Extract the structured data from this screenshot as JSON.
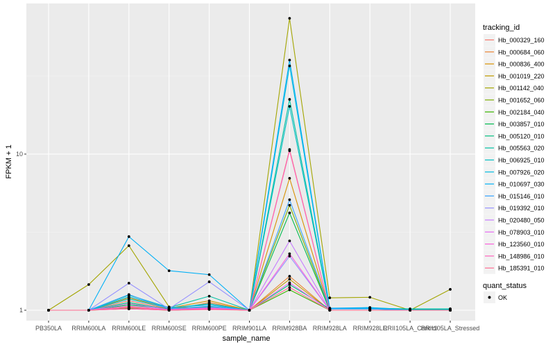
{
  "chart_data": {
    "type": "line",
    "xlabel": "sample_name",
    "ylabel": "FPKM + 1",
    "yscale": "log10",
    "ylim": [
      0.94,
      92
    ],
    "yticks": [
      1,
      10
    ],
    "ytick_labels": [
      "1",
      "10"
    ],
    "grid": true,
    "legend_position": "right",
    "categories": [
      "PB350LA",
      "RRIM600LA",
      "RRIM600LE",
      "RRIM600SE",
      "RRIM600PE",
      "RRIM901LA",
      "RRIM928BA",
      "RRIM928LA",
      "RRIM928LE",
      "RRII105LA_Control",
      "RRII105LA_Stressed"
    ],
    "legend_title": "tracking_id",
    "series": [
      {
        "name": "Hb_000329_160",
        "color": "#F8766D",
        "values": [
          1,
          1,
          1.15,
          1.02,
          1.1,
          1,
          10.7,
          1,
          1,
          1,
          1
        ]
      },
      {
        "name": "Hb_000684_060",
        "color": "#EA8331",
        "values": [
          1,
          1,
          1.05,
          1,
          1.12,
          1,
          1.65,
          1,
          1,
          1,
          1
        ]
      },
      {
        "name": "Hb_000836_400",
        "color": "#D89000",
        "values": [
          1,
          1,
          1.2,
          1.03,
          1.15,
          1,
          7.0,
          1,
          1,
          1,
          1
        ]
      },
      {
        "name": "Hb_001019_220",
        "color": "#C09B00",
        "values": [
          1,
          1,
          1.02,
          1,
          1.05,
          1,
          1.58,
          1,
          1,
          1,
          1
        ]
      },
      {
        "name": "Hb_001142_040",
        "color": "#A3A500",
        "values": [
          1,
          1.46,
          2.59,
          1.05,
          1.02,
          1,
          74,
          1.2,
          1.21,
          1,
          1.36
        ]
      },
      {
        "name": "Hb_001652_060",
        "color": "#7CAE00",
        "values": [
          1,
          1,
          1.1,
          1.02,
          1.05,
          1,
          4.7,
          1,
          1,
          1,
          1
        ]
      },
      {
        "name": "Hb_002184_040",
        "color": "#39B600",
        "values": [
          1,
          1,
          1.03,
          1,
          1.02,
          1,
          1.35,
          1,
          1,
          1,
          1
        ]
      },
      {
        "name": "Hb_003857_010",
        "color": "#00BB4E",
        "values": [
          1,
          1,
          1.08,
          1.02,
          1.04,
          1,
          4.2,
          1,
          1,
          1,
          1
        ]
      },
      {
        "name": "Hb_005120_010",
        "color": "#00BF7D",
        "values": [
          1,
          1,
          1.12,
          1.01,
          1.05,
          1,
          1.46,
          1.02,
          1.02,
          1,
          1.02
        ]
      },
      {
        "name": "Hb_005563_020",
        "color": "#00C1A3",
        "values": [
          1,
          1,
          1.25,
          1.04,
          1.23,
          1,
          22.4,
          1.03,
          1.03,
          1.02,
          1.02
        ]
      },
      {
        "name": "Hb_006925_010",
        "color": "#00BFC4",
        "values": [
          1,
          1,
          1.18,
          1.03,
          1.1,
          1,
          20.2,
          1.02,
          1.04,
          1.01,
          1.01
        ]
      },
      {
        "name": "Hb_007926_020",
        "color": "#00BAE0",
        "values": [
          1,
          1,
          1.22,
          1.04,
          1.08,
          1,
          36.7,
          1.03,
          1.03,
          1,
          1
        ]
      },
      {
        "name": "Hb_010697_030",
        "color": "#00B0F6",
        "values": [
          1,
          1,
          2.96,
          1.79,
          1.69,
          1,
          40,
          1.03,
          1.04,
          1,
          1
        ]
      },
      {
        "name": "Hb_015146_010",
        "color": "#35A2FF",
        "values": [
          1,
          1,
          1.26,
          1.02,
          1.06,
          1,
          5.1,
          1.02,
          1.02,
          1,
          1
        ]
      },
      {
        "name": "Hb_019392_010",
        "color": "#9590FF",
        "values": [
          1,
          1,
          1.49,
          1.02,
          1.52,
          1,
          2.22,
          1,
          1,
          1,
          1
        ]
      },
      {
        "name": "Hb_020480_050",
        "color": "#C77CFF",
        "values": [
          1,
          1,
          1.1,
          1.01,
          1.04,
          1,
          2.78,
          1,
          1,
          1,
          1
        ]
      },
      {
        "name": "Hb_078903_010",
        "color": "#E76BF3",
        "values": [
          1,
          1,
          1.04,
          1,
          1.02,
          1,
          1.5,
          1,
          1,
          1,
          1
        ]
      },
      {
        "name": "Hb_123560_010",
        "color": "#FA62DB",
        "values": [
          1,
          1,
          1.06,
          1.01,
          1.03,
          1,
          2.3,
          1,
          1,
          1,
          1
        ]
      },
      {
        "name": "Hb_148986_010",
        "color": "#FF62BC",
        "values": [
          1,
          1,
          1.02,
          1,
          1.02,
          1,
          10.5,
          1,
          1,
          1,
          1
        ]
      },
      {
        "name": "Hb_185391_010",
        "color": "#FF6C91",
        "values": [
          1,
          1,
          1.04,
          1,
          1.01,
          1,
          1.4,
          1,
          1,
          1,
          1
        ]
      }
    ],
    "shape_legend": {
      "title": "quant_status",
      "entries": [
        "OK"
      ]
    }
  }
}
